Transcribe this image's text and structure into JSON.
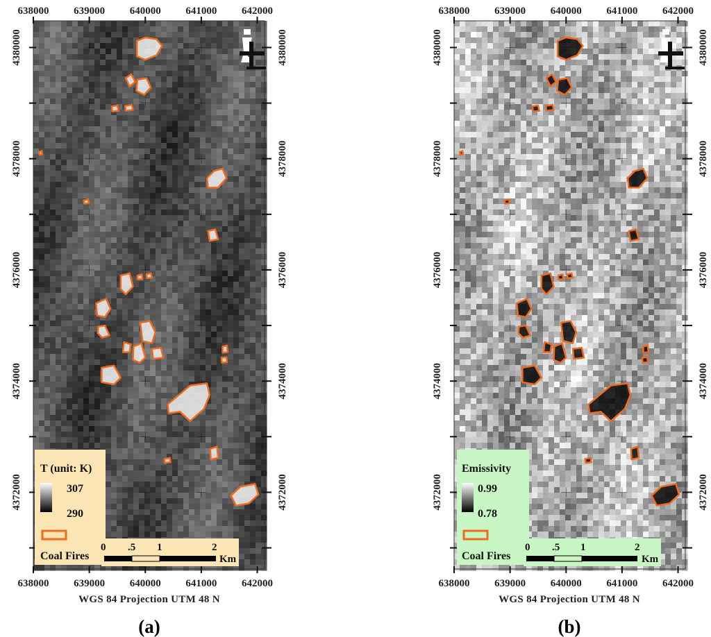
{
  "panels": [
    {
      "id": "a",
      "label": "(a)",
      "projection": "WGS 84 Projection UTM 48 N",
      "x_ticks": [
        "638000",
        "639000",
        "640000",
        "641000",
        "642000"
      ],
      "y_ticks": [
        "4380000",
        "4378000",
        "4376000",
        "4374000",
        "4372000"
      ],
      "legend": {
        "title": "T (unit: K)",
        "max": "307",
        "min": "290",
        "fires_label": "Coal Fires",
        "background": "#fbe5b4"
      },
      "scale_bar": {
        "labels": [
          "0",
          ".5",
          "1",
          "2"
        ],
        "unit": "Km"
      },
      "raster": {
        "mode": "temperature",
        "base_gray": 80,
        "seed": 11
      }
    },
    {
      "id": "b",
      "label": "(b)",
      "projection": "WGS 84 Projection UTM 48 N",
      "x_ticks": [
        "638000",
        "639000",
        "640000",
        "641000",
        "642000"
      ],
      "y_ticks": [
        "4380000",
        "4378000",
        "4376000",
        "4374000",
        "4372000"
      ],
      "legend": {
        "title": "Emissivity",
        "max": "0.99",
        "min": "0.78",
        "fires_label": "Coal Fires",
        "background": "#c8f5c4"
      },
      "scale_bar": {
        "labels": [
          "0",
          ".5",
          "1",
          "2"
        ],
        "unit": "Km"
      },
      "raster": {
        "mode": "emissivity",
        "base_gray": 175,
        "seed": 29
      }
    }
  ],
  "colors": {
    "fire_outline": "#f06a1e",
    "tick_mark": "#111111",
    "ghost_label": "#c8c8c8"
  },
  "icons": {
    "north_arrow": "north-arrow-icon"
  },
  "coal_fires": [
    [
      [
        639850,
        4380120
      ],
      [
        640000,
        4380180
      ],
      [
        640200,
        4380150
      ],
      [
        640300,
        4380030
      ],
      [
        640200,
        4379860
      ],
      [
        640000,
        4379780
      ],
      [
        639850,
        4379840
      ]
    ],
    [
      [
        639650,
        4379450
      ],
      [
        639750,
        4379520
      ],
      [
        639820,
        4379380
      ],
      [
        639720,
        4379300
      ]
    ],
    [
      [
        639860,
        4379420
      ],
      [
        640020,
        4379450
      ],
      [
        640100,
        4379280
      ],
      [
        639980,
        4379150
      ],
      [
        639840,
        4379220
      ]
    ],
    [
      [
        639640,
        4378950
      ],
      [
        639760,
        4378970
      ],
      [
        639780,
        4378880
      ],
      [
        639650,
        4378860
      ]
    ],
    [
      [
        639400,
        4378940
      ],
      [
        639500,
        4378960
      ],
      [
        639520,
        4378860
      ],
      [
        639410,
        4378850
      ]
    ],
    [
      [
        641100,
        4377650
      ],
      [
        641230,
        4377780
      ],
      [
        641380,
        4377820
      ],
      [
        641450,
        4377650
      ],
      [
        641300,
        4377480
      ],
      [
        641120,
        4377480
      ]
    ],
    [
      [
        641120,
        4376700
      ],
      [
        641250,
        4376730
      ],
      [
        641300,
        4376550
      ],
      [
        641150,
        4376520
      ]
    ],
    [
      [
        639560,
        4375900
      ],
      [
        639720,
        4375940
      ],
      [
        639780,
        4375700
      ],
      [
        639650,
        4375560
      ],
      [
        639560,
        4375660
      ]
    ],
    [
      [
        639860,
        4375900
      ],
      [
        639940,
        4375920
      ],
      [
        639950,
        4375830
      ],
      [
        639860,
        4375830
      ]
    ],
    [
      [
        640020,
        4375920
      ],
      [
        640100,
        4375940
      ],
      [
        640120,
        4375860
      ],
      [
        640030,
        4375850
      ]
    ],
    [
      [
        639120,
        4375400
      ],
      [
        639300,
        4375480
      ],
      [
        639380,
        4375300
      ],
      [
        639280,
        4375150
      ],
      [
        639140,
        4375180
      ]
    ],
    [
      [
        639910,
        4375050
      ],
      [
        640080,
        4375080
      ],
      [
        640180,
        4374880
      ],
      [
        640120,
        4374680
      ],
      [
        639950,
        4374720
      ]
    ],
    [
      [
        639160,
        4374980
      ],
      [
        639280,
        4375000
      ],
      [
        639360,
        4374820
      ],
      [
        639230,
        4374780
      ],
      [
        639150,
        4374860
      ]
    ],
    [
      [
        639620,
        4374700
      ],
      [
        639740,
        4374660
      ],
      [
        639720,
        4374520
      ],
      [
        639600,
        4374520
      ]
    ],
    [
      [
        639790,
        4374620
      ],
      [
        639930,
        4374680
      ],
      [
        640000,
        4374420
      ],
      [
        639900,
        4374330
      ],
      [
        639780,
        4374380
      ]
    ],
    [
      [
        640120,
        4374580
      ],
      [
        640280,
        4374600
      ],
      [
        640320,
        4374420
      ],
      [
        640140,
        4374400
      ]
    ],
    [
      [
        639220,
        4374240
      ],
      [
        639440,
        4374280
      ],
      [
        639560,
        4374060
      ],
      [
        639440,
        4373940
      ],
      [
        639220,
        4373980
      ]
    ],
    [
      [
        640400,
        4373580
      ],
      [
        640600,
        4373750
      ],
      [
        640800,
        4373920
      ],
      [
        641100,
        4373960
      ],
      [
        641150,
        4373750
      ],
      [
        641050,
        4373500
      ],
      [
        640800,
        4373280
      ],
      [
        640620,
        4373450
      ],
      [
        640420,
        4373420
      ]
    ],
    [
      [
        641380,
        4374620
      ],
      [
        641460,
        4374640
      ],
      [
        641470,
        4374520
      ],
      [
        641380,
        4374510
      ]
    ],
    [
      [
        641360,
        4374420
      ],
      [
        641450,
        4374430
      ],
      [
        641460,
        4374340
      ],
      [
        641370,
        4374330
      ]
    ],
    [
      [
        641160,
        4372780
      ],
      [
        641280,
        4372820
      ],
      [
        641300,
        4372620
      ],
      [
        641170,
        4372590
      ]
    ],
    [
      [
        640340,
        4372600
      ],
      [
        640440,
        4372620
      ],
      [
        640450,
        4372540
      ],
      [
        640350,
        4372530
      ]
    ],
    [
      [
        641530,
        4371940
      ],
      [
        641700,
        4372100
      ],
      [
        641960,
        4372150
      ],
      [
        642020,
        4371960
      ],
      [
        641850,
        4371800
      ],
      [
        641620,
        4371760
      ]
    ],
    [
      [
        638100,
        4378120
      ],
      [
        638150,
        4378140
      ],
      [
        638160,
        4378080
      ],
      [
        638110,
        4378070
      ]
    ],
    [
      [
        638900,
        4377250
      ],
      [
        638980,
        4377270
      ],
      [
        638990,
        4377200
      ],
      [
        638910,
        4377190
      ]
    ]
  ]
}
